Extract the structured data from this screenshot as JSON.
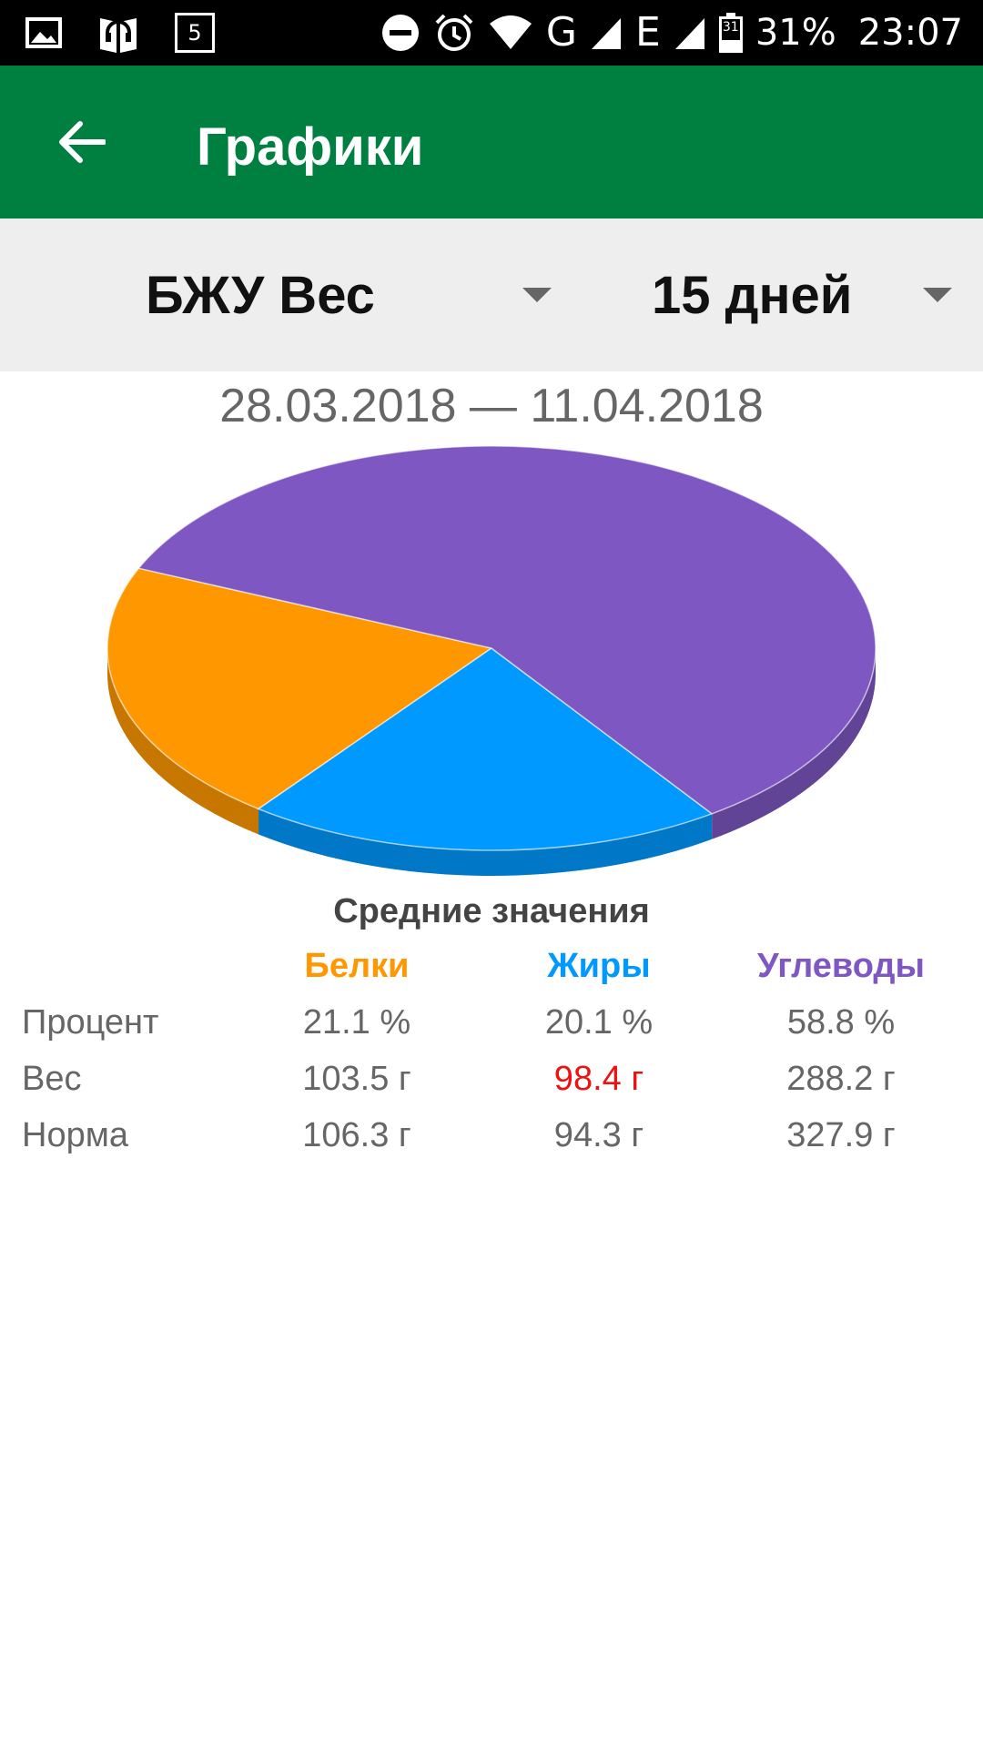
{
  "status_bar": {
    "notification_badge": "5",
    "network_1": "G",
    "network_2": "E",
    "battery_day": "31",
    "battery": "31%",
    "time": "23:07",
    "icons": [
      "image-icon",
      "headset-book-icon",
      "badge-5-icon",
      "do-not-disturb-icon",
      "alarm-icon",
      "wifi-icon",
      "signal-icon",
      "signal-icon",
      "battery-icon"
    ]
  },
  "app_bar": {
    "title": "Графики",
    "back_icon": "arrow-left-icon",
    "color": "#008040"
  },
  "selectors": {
    "type": "БЖУ Вес",
    "period": "15 дней"
  },
  "date_range": "28.03.2018 — 11.04.2018",
  "chart_data": {
    "type": "pie",
    "style": "3d",
    "slices": [
      {
        "label": "Белки",
        "value": 21.1,
        "color": "#ff9800"
      },
      {
        "label": "Жиры",
        "value": 20.1,
        "color": "#0099ff"
      },
      {
        "label": "Углеводы",
        "value": 58.8,
        "color": "#7e57c2"
      }
    ]
  },
  "averages": {
    "title": "Средние значения",
    "headers": [
      {
        "label": "Белки",
        "color": "#ff9800"
      },
      {
        "label": "Жиры",
        "color": "#0099ff"
      },
      {
        "label": "Углеводы",
        "color": "#7e57c2"
      }
    ],
    "rows": [
      {
        "label": "Процент",
        "values": [
          "21.1 %",
          "20.1 %",
          "58.8 %"
        ]
      },
      {
        "label": "Вес",
        "values": [
          "103.5 г",
          "98.4 г",
          "288.2 г"
        ],
        "highlight_index": 1,
        "highlight_color": "#ee1111"
      },
      {
        "label": "Норма",
        "values": [
          "106.3 г",
          "94.3 г",
          "327.9 г"
        ]
      }
    ]
  }
}
